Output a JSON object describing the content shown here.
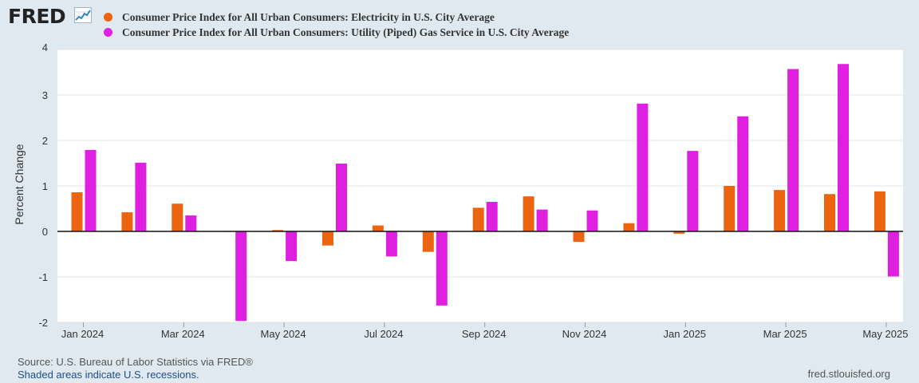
{
  "header": {
    "logo_text": "FRED"
  },
  "chart_data": {
    "type": "bar",
    "ylabel": "Percent Change",
    "ylim": [
      -2,
      4
    ],
    "yticks": [
      4,
      3,
      2,
      1,
      0,
      -1,
      -2
    ],
    "grid": true,
    "legend_position": "top-left",
    "categories": [
      "Jan 2024",
      "Feb 2024",
      "Mar 2024",
      "Apr 2024",
      "May 2024",
      "Jun 2024",
      "Jul 2024",
      "Aug 2024",
      "Sep 2024",
      "Oct 2024",
      "Nov 2024",
      "Dec 2024",
      "Jan 2025",
      "Feb 2025",
      "Mar 2025",
      "Apr 2025",
      "May 2025"
    ],
    "xtick_labels": [
      "Jan 2024",
      "Mar 2024",
      "May 2024",
      "Jul 2024",
      "Sep 2024",
      "Nov 2024",
      "Jan 2025",
      "Mar 2025",
      "May 2025"
    ],
    "xtick_indices": [
      0,
      2,
      4,
      6,
      8,
      10,
      12,
      14,
      16
    ],
    "series": [
      {
        "name": "Consumer Price Index for All Urban Consumers: Electricity in U.S. City Average",
        "color": "#ed6410",
        "values": [
          0.86,
          0.42,
          0.61,
          0.0,
          0.03,
          -0.31,
          0.13,
          -0.45,
          0.52,
          0.77,
          -0.23,
          0.18,
          -0.05,
          1.0,
          0.91,
          0.82,
          0.88
        ]
      },
      {
        "name": "Consumer Price Index for All Urban Consumers: Utility (Piped) Gas Service in U.S. City Average",
        "color": "#e020e0",
        "values": [
          1.79,
          1.51,
          0.35,
          -1.97,
          -0.65,
          1.49,
          -0.55,
          -1.63,
          0.65,
          0.48,
          0.46,
          2.81,
          1.77,
          2.53,
          3.57,
          3.68,
          -0.99
        ]
      }
    ]
  },
  "footer": {
    "source": "Source: U.S. Bureau of Labor Statistics via FRED®",
    "recessions": "Shaded areas indicate U.S. recessions.",
    "site": "fred.stlouisfed.org"
  }
}
